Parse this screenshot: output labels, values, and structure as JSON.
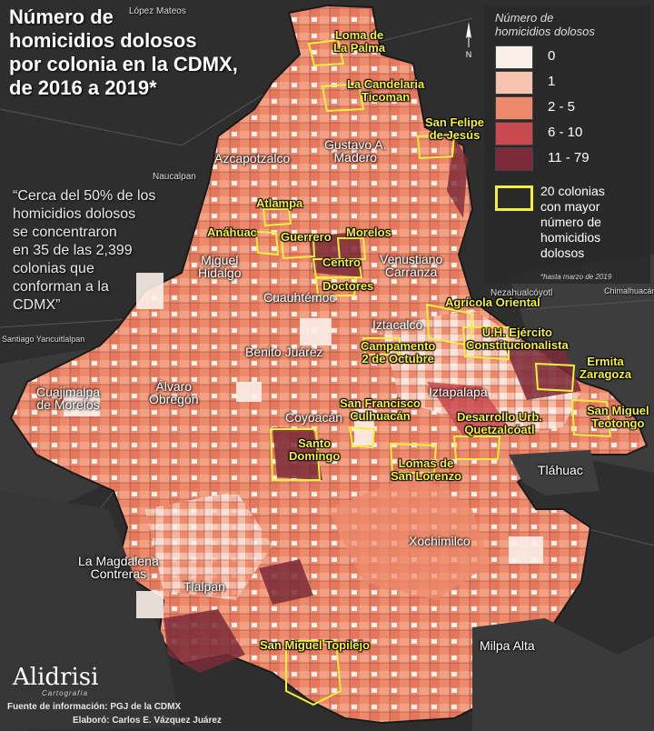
{
  "title": [
    "Número de",
    "homicidios dolosos",
    "por colonia en la CDMX,",
    "de 2016 a 2019*"
  ],
  "quote": [
    "“Cerca del 50% de los",
    "homicidios dolosos",
    "se concentraron",
    "en 35 de las 2,399",
    "colonias que",
    "conforman a la",
    "CDMX”"
  ],
  "legend": {
    "title": [
      "Número de",
      "homicidios dolosos"
    ],
    "classes": [
      {
        "label": "0",
        "color": "#fbefe9"
      },
      {
        "label": "1",
        "color": "#f7c4b0"
      },
      {
        "label": "2 -  5",
        "color": "#ee8a6c"
      },
      {
        "label": "6 - 10",
        "color": "#c94a4e"
      },
      {
        "label": "11 - 79",
        "color": "#7a2a38"
      }
    ],
    "highlight_label": [
      "20 colonias",
      "con mayor",
      "número de",
      "homicidios",
      "dolosos"
    ],
    "highlight_color": "#f2ef3a",
    "note": "*hasta marzo de 2019"
  },
  "labels": {
    "highlighted": [
      {
        "lines": [
          "Loma de",
          "La Palma"
        ]
      },
      {
        "lines": [
          "La Candelaria",
          "Ticoman"
        ]
      },
      {
        "lines": [
          "San Felipe",
          "de Jesús"
        ]
      },
      {
        "lines": [
          "Atlampa"
        ]
      },
      {
        "lines": [
          "Anáhuac"
        ]
      },
      {
        "lines": [
          "Guerrero"
        ]
      },
      {
        "lines": [
          "Morelos"
        ]
      },
      {
        "lines": [
          "Centro"
        ]
      },
      {
        "lines": [
          "Doctores"
        ]
      },
      {
        "lines": [
          "Agrícola Oriental"
        ]
      },
      {
        "lines": [
          "U.H. Ejército",
          "Constitucionalista"
        ]
      },
      {
        "lines": [
          "Campamento",
          "2 de Octubre"
        ]
      },
      {
        "lines": [
          "Ermita",
          "Zaragoza"
        ]
      },
      {
        "lines": [
          "San Francisco",
          "Culhuacán"
        ]
      },
      {
        "lines": [
          "San Miguel",
          "Teotongo"
        ]
      },
      {
        "lines": [
          "Desarrollo Urb.",
          "Quetzalcóatl"
        ]
      },
      {
        "lines": [
          "Santo",
          "Domingo"
        ]
      },
      {
        "lines": [
          "Lomas de",
          "San Lorenzo"
        ]
      },
      {
        "lines": [
          "San Miguel Topilejo"
        ]
      }
    ],
    "boroughs": [
      {
        "lines": [
          "Gustavo A.",
          "Madero"
        ]
      },
      {
        "lines": [
          "Azcapotzalco"
        ]
      },
      {
        "lines": [
          "Miguel",
          "Hidalgo"
        ]
      },
      {
        "lines": [
          "Venustiano",
          "Carranza"
        ]
      },
      {
        "lines": [
          "Cuauhtémoc"
        ]
      },
      {
        "lines": [
          "Iztacalco"
        ]
      },
      {
        "lines": [
          "Benito Juárez"
        ]
      },
      {
        "lines": [
          "Cuajimalpa",
          "de Morelos"
        ]
      },
      {
        "lines": [
          "Álvaro",
          "Obregón"
        ]
      },
      {
        "lines": [
          "Iztapalapa"
        ]
      },
      {
        "lines": [
          "Coyoacán"
        ]
      },
      {
        "lines": [
          "Tláhuac"
        ]
      },
      {
        "lines": [
          "Xochimilco"
        ]
      },
      {
        "lines": [
          "La Magdalena",
          "Contreras"
        ]
      },
      {
        "lines": [
          "Tlalpan"
        ]
      },
      {
        "lines": [
          "Milpa Alta"
        ]
      }
    ],
    "background": [
      {
        "lines": [
          "López Mateos"
        ]
      },
      {
        "lines": [
          "Naucalpan"
        ]
      },
      {
        "lines": [
          "Santiago Yancuitlalpan"
        ]
      },
      {
        "lines": [
          "Nezahualcóyotl"
        ]
      },
      {
        "lines": [
          "Chimalhuacán"
        ]
      }
    ]
  },
  "logo": {
    "name": "Alidrisi",
    "sub": "Cartografía"
  },
  "credits": {
    "source": "Fuente de información: PGJ de la CDMX",
    "author": "Elaboró: Carlos E. Vázquez Juárez"
  },
  "north_label": "N"
}
